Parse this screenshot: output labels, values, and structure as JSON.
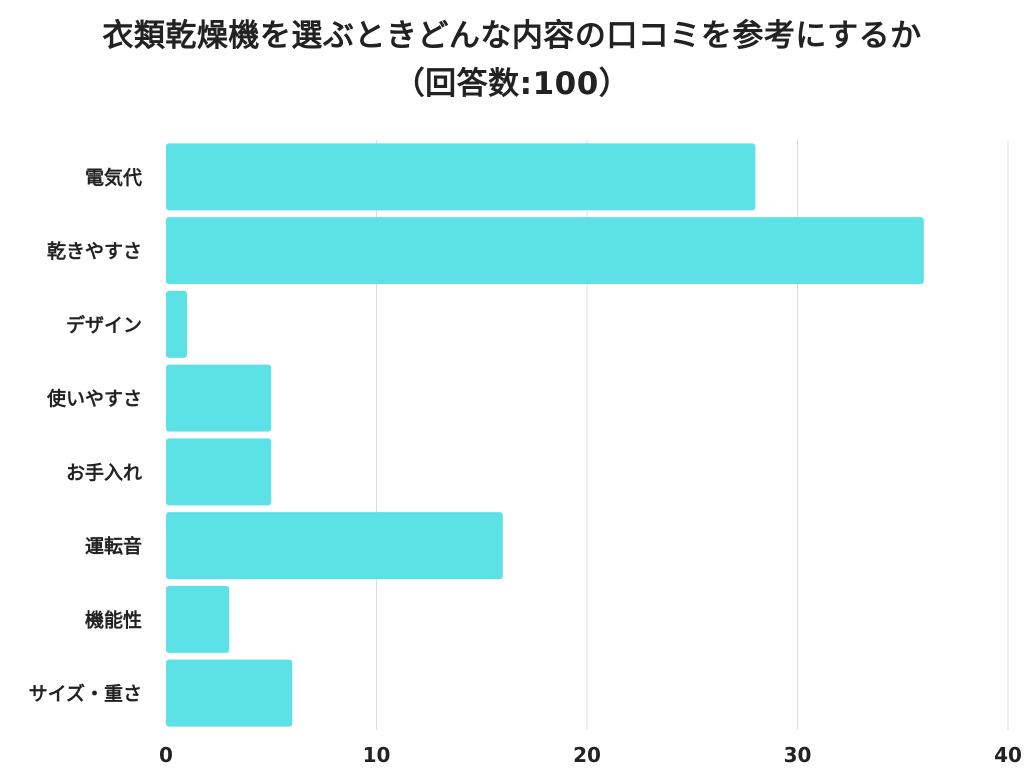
{
  "chart_data": {
    "type": "bar",
    "orientation": "horizontal",
    "title": "衣類乾燥機を選ぶときどんな内容の口コミを参考にするか",
    "subtitle": "（回答数:100）",
    "categories": [
      "電気代",
      "乾きやすさ",
      "デザイン",
      "使いやすさ",
      "お手入れ",
      "運転音",
      "機能性",
      "サイズ・重さ"
    ],
    "values": [
      28,
      36,
      1,
      5,
      5,
      16,
      3,
      6
    ],
    "xlim": [
      0,
      40
    ],
    "x_ticks": [
      "0",
      "10",
      "20",
      "30",
      "40"
    ],
    "grid": true,
    "bar_color": "#5ce1e6",
    "grid_color": "#dddddd"
  }
}
